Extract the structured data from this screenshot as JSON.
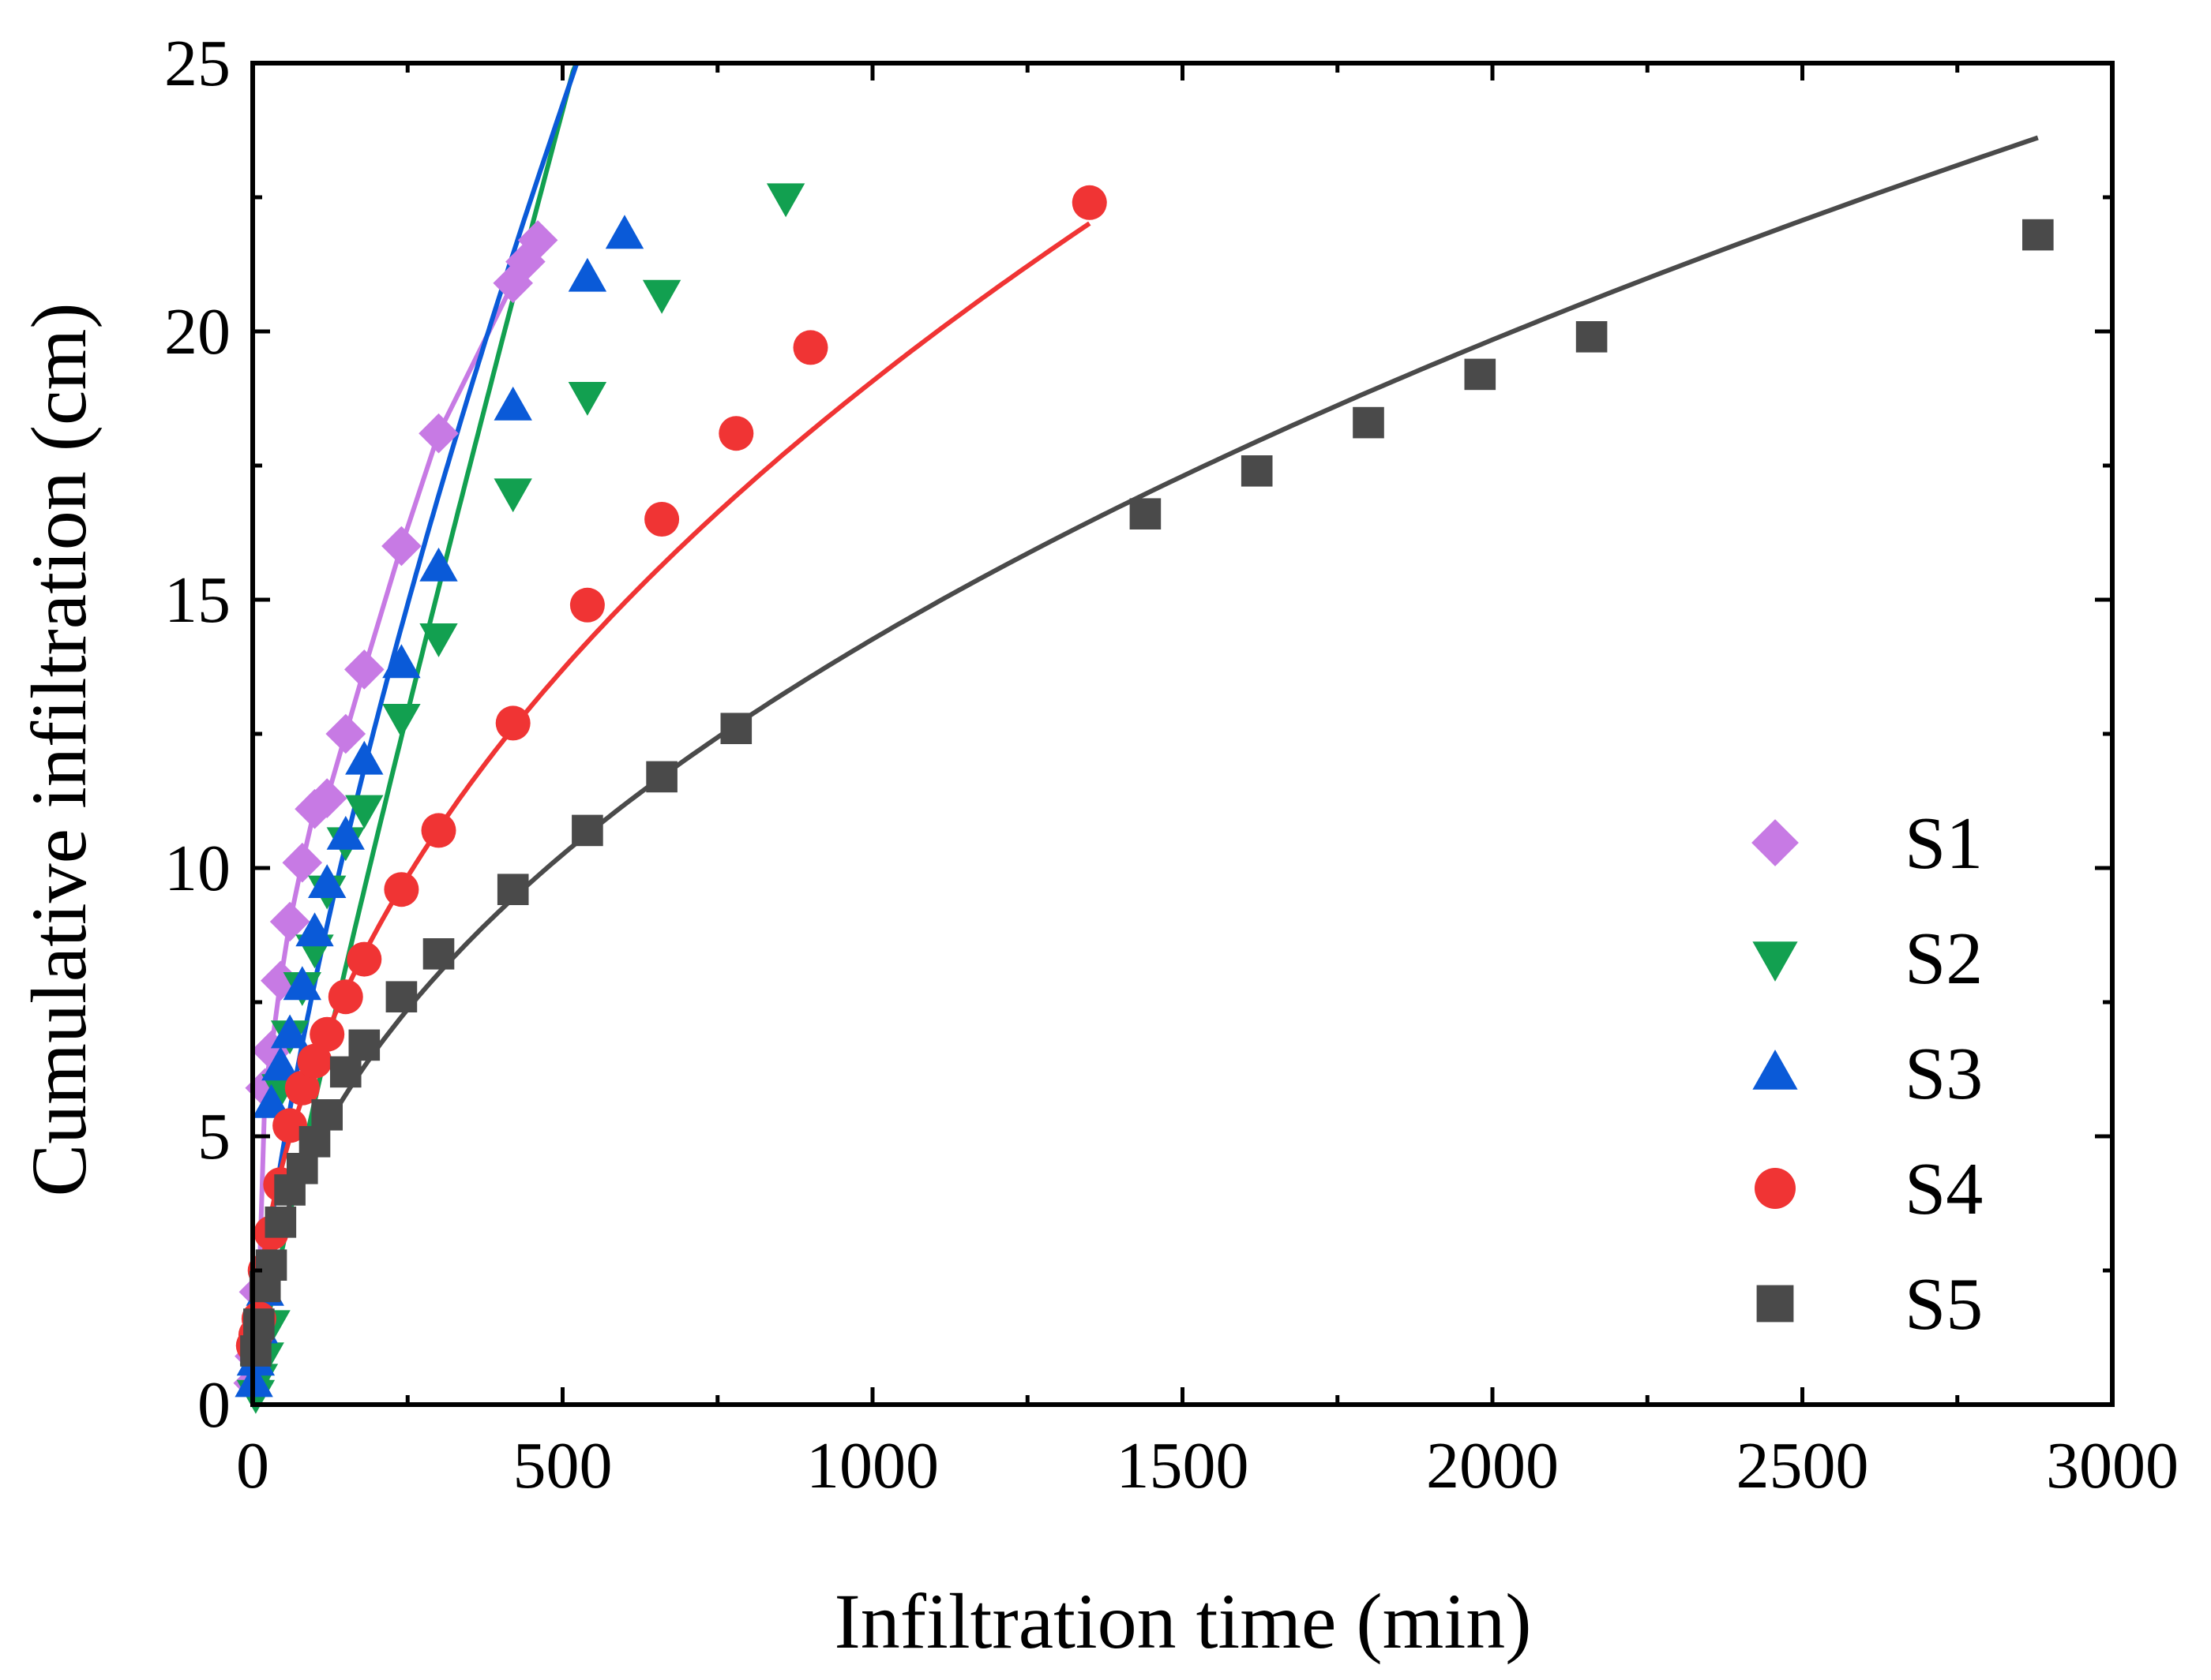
{
  "chart_data": {
    "type": "scatter",
    "title": "",
    "xlabel": "Infiltration time (min)",
    "ylabel": "Cumulative infiltration (cm)",
    "xlim": [
      0,
      3000
    ],
    "ylim": [
      0,
      25
    ],
    "xticks": [
      0,
      500,
      1000,
      1500,
      2000,
      2500,
      3000
    ],
    "yticks": [
      0,
      5,
      10,
      15,
      20,
      25
    ],
    "xtick_labels": [
      "0",
      "500",
      "1000",
      "1500",
      "2000",
      "2500",
      "3000"
    ],
    "ytick_labels": [
      "0",
      "5",
      "10",
      "15",
      "20",
      "25"
    ],
    "legend_position": "right",
    "series": [
      {
        "name": "S1",
        "marker": "diamond",
        "color": "#c77ae4",
        "fit": "polyline",
        "x": [
          1,
          3,
          5,
          10,
          20,
          30,
          45,
          60,
          80,
          100,
          120,
          150,
          180,
          240,
          300,
          420,
          440,
          460
        ],
        "y": [
          0.4,
          0.9,
          1.1,
          2.1,
          5.9,
          6.6,
          7.9,
          9.0,
          10.1,
          11.1,
          11.3,
          12.5,
          13.7,
          16.0,
          18.1,
          20.9,
          21.3,
          21.7
        ]
      },
      {
        "name": "S2",
        "marker": "triangle-down",
        "color": "#12a050",
        "fit": "power",
        "x": [
          5,
          10,
          20,
          30,
          45,
          60,
          80,
          100,
          120,
          150,
          180,
          240,
          300,
          420,
          540,
          660,
          860
        ],
        "y": [
          0.2,
          0.5,
          0.9,
          1.5,
          5.9,
          6.9,
          7.8,
          8.5,
          9.6,
          10.5,
          11.1,
          12.8,
          14.3,
          17.0,
          18.8,
          20.7,
          22.5
        ]
      },
      {
        "name": "S3",
        "marker": "triangle-up",
        "color": "#0a5ad8",
        "fit": "power",
        "x": [
          2,
          5,
          10,
          20,
          30,
          45,
          60,
          80,
          100,
          120,
          150,
          180,
          240,
          300,
          420,
          540,
          600
        ],
        "y": [
          0.4,
          0.8,
          1.4,
          2.1,
          5.6,
          6.3,
          6.9,
          7.8,
          8.8,
          9.7,
          10.6,
          12.0,
          13.8,
          15.6,
          18.6,
          21.0,
          21.8
        ]
      },
      {
        "name": "S4",
        "marker": "circle",
        "color": "#f03434",
        "fit": "power",
        "x": [
          1,
          5,
          10,
          20,
          30,
          45,
          60,
          80,
          100,
          120,
          150,
          180,
          240,
          300,
          420,
          540,
          660,
          780,
          900,
          1350
        ],
        "y": [
          1.1,
          1.3,
          1.6,
          2.5,
          3.2,
          4.1,
          5.2,
          5.9,
          6.4,
          6.9,
          7.6,
          8.3,
          9.6,
          10.7,
          12.7,
          14.9,
          16.5,
          18.1,
          19.7,
          22.4
        ]
      },
      {
        "name": "S5",
        "marker": "square",
        "color": "#4a4a4a",
        "fit": "power",
        "x": [
          5,
          10,
          20,
          30,
          45,
          60,
          80,
          100,
          120,
          150,
          180,
          240,
          300,
          420,
          540,
          660,
          780,
          1440,
          1620,
          1800,
          1980,
          2160,
          2880
        ],
        "y": [
          1.0,
          1.5,
          2.2,
          2.6,
          3.4,
          4.0,
          4.4,
          4.9,
          5.4,
          6.2,
          6.7,
          7.6,
          8.4,
          9.6,
          10.7,
          11.7,
          12.6,
          16.6,
          17.4,
          18.3,
          19.2,
          19.9,
          21.8
        ]
      }
    ]
  }
}
